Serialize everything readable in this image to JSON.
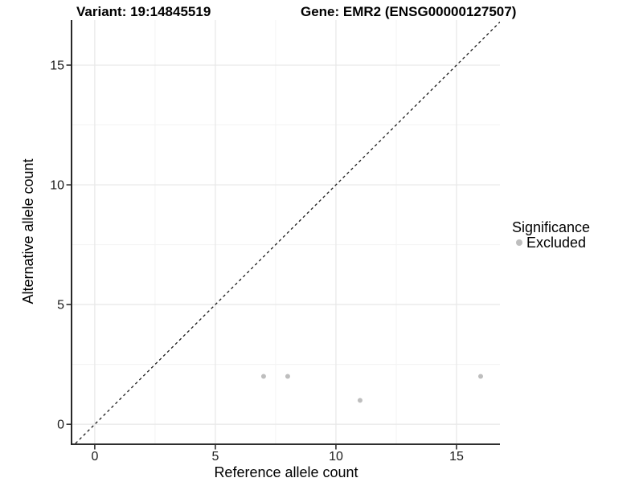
{
  "page": {
    "background": "#ffffff"
  },
  "chart_data": {
    "type": "scatter",
    "title_left": "Variant: 19:14845519",
    "title_right": "Gene: EMR2 (ENSG00000127507)",
    "xlabel": "Reference allele count",
    "ylabel": "Alternative allele count",
    "xticks": [
      0,
      5,
      10,
      15
    ],
    "yticks": [
      0,
      5,
      10,
      15
    ],
    "xticks_minor": [
      2.5,
      7.5,
      12.5
    ],
    "yticks_minor": [
      2.5,
      7.5,
      12.5
    ],
    "xlim": [
      -0.93,
      16.8
    ],
    "ylim": [
      -0.8,
      16.88
    ],
    "grid": "on",
    "reference_line": {
      "kind": "identity",
      "style": "dashed",
      "color": "#1a1a1a"
    },
    "series": [
      {
        "name": "Excluded",
        "color": "#bebebe",
        "points": [
          {
            "x": 7,
            "y": 2
          },
          {
            "x": 8,
            "y": 2
          },
          {
            "x": 11,
            "y": 1
          },
          {
            "x": 16,
            "y": 2
          }
        ]
      }
    ],
    "legend": {
      "title": "Significance",
      "position": "right",
      "items": [
        {
          "label": "Excluded",
          "color": "#bebebe"
        }
      ]
    }
  },
  "colors": {
    "grid_major": "#e7e7e7",
    "grid_minor": "#f3f3f3",
    "axis_line": "#111111",
    "tick_mark": "#111111",
    "point": "#bebebe"
  }
}
